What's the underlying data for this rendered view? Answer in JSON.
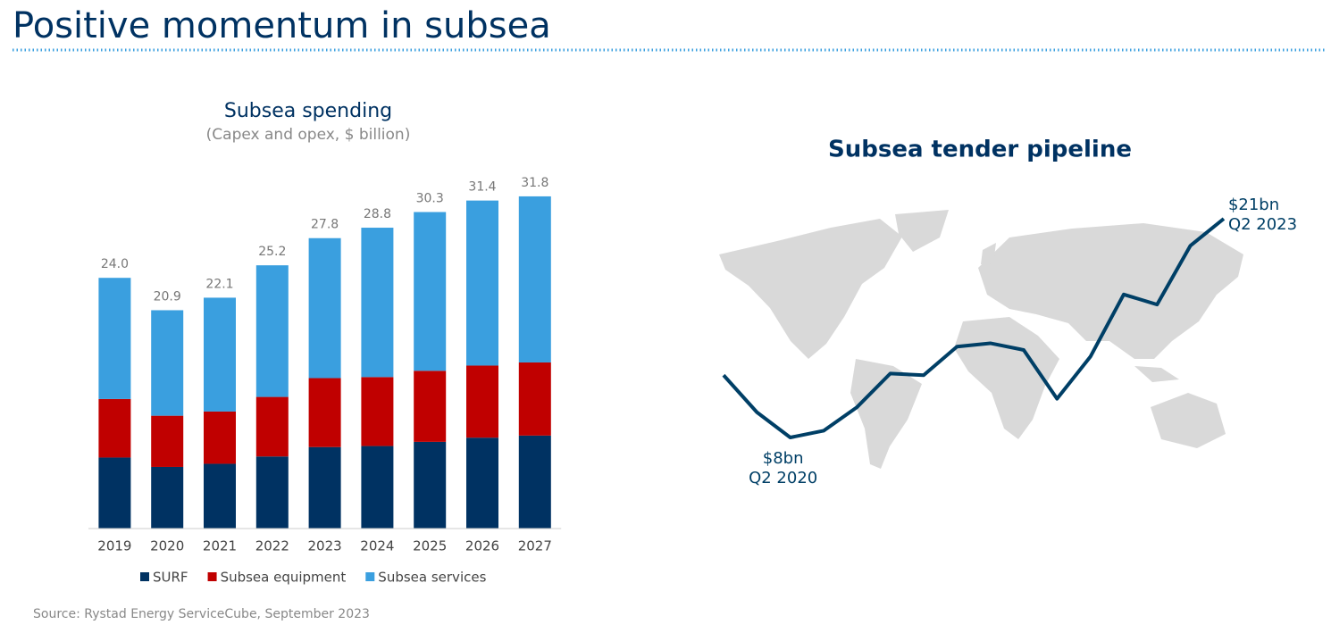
{
  "title": "Positive momentum in subsea",
  "source": "Source: Rystad Energy ServiceCube, September 2023",
  "chart_data": [
    {
      "type": "stacked_bar",
      "title": "Subsea spending",
      "subtitle": "(Capex and opex, $ billion)",
      "categories": [
        "2019",
        "2020",
        "2021",
        "2022",
        "2023",
        "2024",
        "2025",
        "2026",
        "2027"
      ],
      "series": [
        {
          "name": "SURF",
          "color": "#003262",
          "values": [
            6.8,
            5.9,
            6.2,
            6.9,
            7.8,
            7.9,
            8.3,
            8.7,
            8.9
          ]
        },
        {
          "name": "Subsea equipment",
          "color": "#c00000",
          "values": [
            5.6,
            4.9,
            5.0,
            5.7,
            6.6,
            6.6,
            6.8,
            6.9,
            7.0
          ]
        },
        {
          "name": "Subsea services",
          "color": "#3a9fdf",
          "values": [
            11.6,
            10.1,
            10.9,
            12.6,
            13.4,
            14.3,
            15.2,
            15.8,
            15.9
          ]
        }
      ],
      "totals": [
        24,
        20.9,
        22.1,
        25.2,
        27.8,
        28.8,
        30.3,
        31.4,
        31.8
      ],
      "total_labels": [
        "24.0",
        "20.9",
        "22.1",
        "25.2",
        "27.8",
        "28.8",
        "30.3",
        "31.4",
        "31.8"
      ],
      "legend": "bottom"
    },
    {
      "type": "line",
      "title": "Subsea tender pipeline",
      "categories": [
        null,
        null,
        null,
        null,
        null,
        null,
        null,
        null,
        null,
        null,
        null,
        null,
        null,
        null,
        null,
        null
      ],
      "color": "#003f66",
      "values": [
        11.7,
        9.5,
        8,
        8.4,
        9.8,
        11.8,
        11.7,
        13.4,
        13.6,
        13.2,
        10.3,
        12.8,
        16.5,
        15.9,
        19.4,
        21
      ],
      "annotations": [
        {
          "index": 2,
          "value": 8,
          "label": "$8bn",
          "period": "Q2 2020"
        },
        {
          "index": 15,
          "value": 21,
          "label": "$21bn",
          "period": "Q2 2023"
        }
      ]
    }
  ]
}
